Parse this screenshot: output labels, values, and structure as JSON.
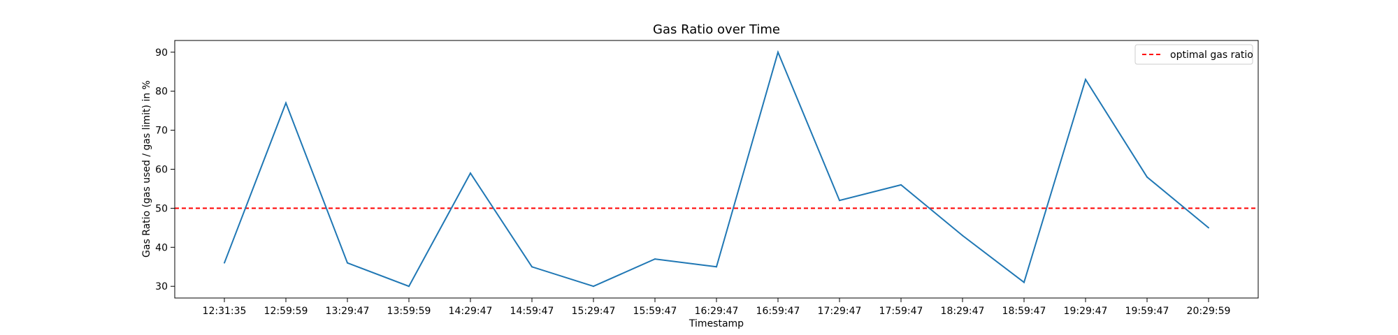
{
  "chart_data": {
    "type": "line",
    "title": "Gas Ratio over Time",
    "xlabel": "Timestamp",
    "ylabel": "Gas Ratio (gas used / gas limit) in %",
    "x": [
      "12:31:35",
      "12:59:59",
      "13:29:47",
      "13:59:59",
      "14:29:47",
      "14:59:47",
      "15:29:47",
      "15:59:47",
      "16:29:47",
      "16:59:47",
      "17:29:47",
      "17:59:47",
      "18:29:47",
      "18:59:47",
      "19:29:47",
      "19:59:47",
      "20:29:59"
    ],
    "series": [
      {
        "values": [
          36,
          77,
          36,
          30,
          59,
          35,
          30,
          37,
          35,
          90,
          52,
          56,
          43,
          31,
          83,
          58,
          45
        ],
        "color": "#1f77b4"
      }
    ],
    "reference_line": {
      "name": "optimal gas ratio",
      "y": 50,
      "color": "#ff0000",
      "style": "dashed"
    },
    "ylim": [
      27,
      93
    ],
    "yticks": [
      30,
      40,
      50,
      60,
      70,
      80,
      90
    ],
    "grid": false,
    "legend_position": "top-right"
  }
}
